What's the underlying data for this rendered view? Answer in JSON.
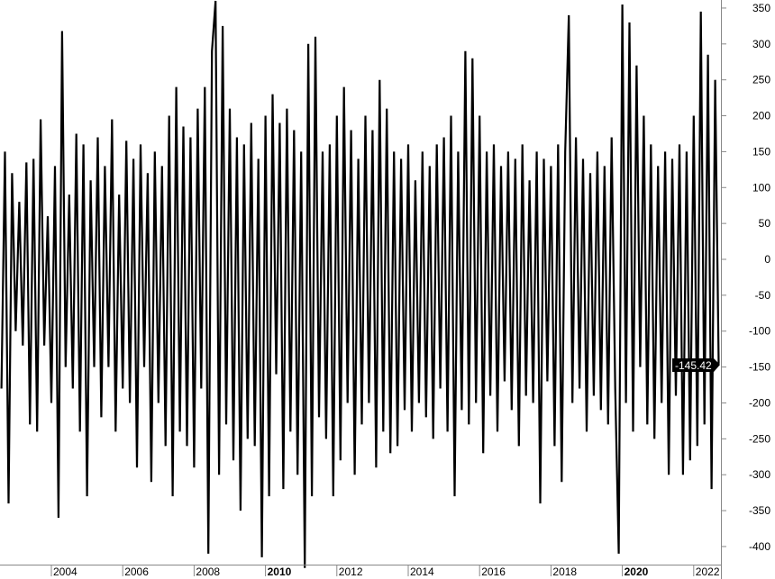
{
  "chart_data": {
    "type": "line",
    "title": "",
    "xlabel": "",
    "ylabel": "",
    "ylim": [
      -420,
      360
    ],
    "xlim": [
      2002.55,
      2022.75
    ],
    "grid": false,
    "y_axis_side": "right",
    "line_color": "#000000",
    "y_ticks": [
      350,
      300,
      250,
      200,
      150,
      100,
      50,
      0,
      -50,
      -100,
      -150,
      -200,
      -250,
      -300,
      -350,
      -400
    ],
    "y_tick_labels": [
      "350",
      "300",
      "250",
      "200",
      "150",
      "100",
      "50",
      "0",
      "-50",
      "-100",
      "-150",
      "-200",
      "-250",
      "-300",
      "-350",
      "-400"
    ],
    "x_ticks": [
      {
        "year": 2004,
        "label": "2004",
        "bold": false
      },
      {
        "year": 2006,
        "label": "2006",
        "bold": false
      },
      {
        "year": 2008,
        "label": "2008",
        "bold": false
      },
      {
        "year": 2010,
        "label": "2010",
        "bold": true
      },
      {
        "year": 2012,
        "label": "2012",
        "bold": false
      },
      {
        "year": 2014,
        "label": "2014",
        "bold": false
      },
      {
        "year": 2016,
        "label": "2016",
        "bold": false
      },
      {
        "year": 2018,
        "label": "2018",
        "bold": false
      },
      {
        "year": 2020,
        "label": "2020",
        "bold": true
      },
      {
        "year": 2022,
        "label": "2022",
        "bold": false
      }
    ],
    "x_start": 2002.6,
    "x_step": 0.1,
    "values": [
      -180,
      150,
      -340,
      120,
      -100,
      80,
      -120,
      135,
      -230,
      140,
      -240,
      195,
      -120,
      60,
      -200,
      130,
      -360,
      318,
      -150,
      90,
      -180,
      175,
      -240,
      160,
      -330,
      110,
      -150,
      170,
      -220,
      130,
      -150,
      195,
      -240,
      90,
      -180,
      165,
      -200,
      140,
      -290,
      160,
      -150,
      120,
      -310,
      150,
      -200,
      130,
      -260,
      200,
      -330,
      240,
      -240,
      185,
      -260,
      170,
      -290,
      210,
      -180,
      240,
      -410,
      290,
      360,
      -300,
      325,
      -230,
      210,
      -280,
      170,
      -350,
      160,
      -250,
      190,
      -260,
      140,
      -415,
      200,
      -330,
      230,
      -160,
      190,
      -320,
      210,
      -240,
      180,
      -300,
      150,
      -430,
      300,
      -330,
      310,
      -220,
      150,
      -250,
      160,
      -330,
      200,
      -280,
      240,
      -200,
      180,
      -300,
      140,
      -230,
      200,
      -200,
      180,
      -290,
      250,
      -240,
      210,
      -270,
      150,
      -260,
      140,
      -210,
      160,
      -240,
      110,
      -200,
      150,
      -220,
      130,
      -250,
      160,
      -180,
      170,
      -240,
      200,
      -330,
      150,
      -210,
      290,
      -230,
      280,
      -200,
      200,
      -270,
      150,
      -190,
      160,
      -240,
      130,
      -170,
      150,
      -210,
      140,
      -260,
      160,
      -190,
      110,
      -200,
      150,
      -340,
      140,
      -170,
      130,
      -260,
      160,
      -310,
      150,
      340,
      -200,
      170,
      -180,
      140,
      -240,
      120,
      -190,
      150,
      -210,
      130,
      -230,
      170,
      -180,
      -410,
      355,
      -200,
      330,
      -240,
      270,
      -150,
      200,
      -230,
      160,
      -250,
      130,
      -200,
      150,
      -300,
      140,
      -190,
      160,
      -300,
      150,
      -280,
      200,
      -260,
      345,
      -230,
      285,
      -320,
      250,
      -145.42
    ],
    "last_value_label": "-145.42"
  }
}
